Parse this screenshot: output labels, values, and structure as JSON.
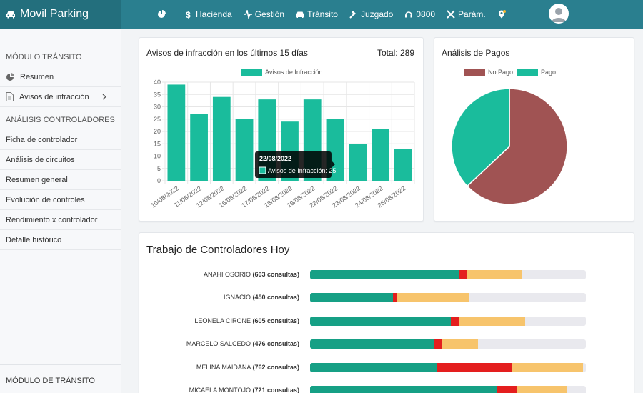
{
  "header": {
    "brand": "Movil Parking",
    "nav": [
      {
        "label": "",
        "icon": "pie-chart-icon"
      },
      {
        "label": "Hacienda",
        "icon": "dollar-icon"
      },
      {
        "label": "Gestión",
        "icon": "activity-icon"
      },
      {
        "label": "Tránsito",
        "icon": "car-icon"
      },
      {
        "label": "Juzgado",
        "icon": "gavel-icon"
      },
      {
        "label": "0800",
        "icon": "headset-icon"
      },
      {
        "label": "Parám.",
        "icon": "tools-icon"
      },
      {
        "label": "",
        "icon": "location-pin-icon"
      }
    ]
  },
  "sidebar": {
    "section1": "MÓDULO TRÁNSITO",
    "items1": [
      {
        "label": "Resumen",
        "icon": "pie-chart-icon"
      },
      {
        "label": "Avisos de infracción",
        "icon": "document-icon"
      }
    ],
    "section2": "ANÁLISIS CONTROLADORES",
    "items2": [
      {
        "label": "Ficha de controlador"
      },
      {
        "label": "Análisis de circuitos"
      },
      {
        "label": "Resumen general"
      },
      {
        "label": "Evolución de controles"
      },
      {
        "label": "Rendimiento x controlador"
      },
      {
        "label": "Detalle histórico"
      }
    ],
    "bottom": "MÓDULO DE TRÁNSITO"
  },
  "avisos": {
    "title": "Avisos de infracción en los últimos 15 días",
    "total": "Total: 289"
  },
  "pagos": {
    "title": "Análisis de Pagos"
  },
  "chart_data": [
    {
      "type": "bar",
      "title": "Avisos de infracción en los últimos 15 días",
      "categories": [
        "10/08/2022",
        "11/08/2022",
        "12/08/2022",
        "16/08/2022",
        "17/08/2022",
        "18/08/2022",
        "19/08/2022",
        "22/08/2022",
        "23/08/2022",
        "24/08/2022",
        "25/08/2022"
      ],
      "series": [
        {
          "name": "Avisos de Infracción",
          "values": [
            39,
            27,
            34,
            25,
            33,
            24,
            33,
            25,
            15,
            21,
            13
          ]
        }
      ],
      "ylim": [
        0,
        40
      ],
      "yticks": [
        0,
        5,
        10,
        15,
        20,
        25,
        30,
        35,
        40
      ],
      "color": "#1abc9c",
      "legend": "top",
      "grid": true,
      "tooltip": {
        "title": "22/08/2022",
        "text": "Avisos de Infracción: 25",
        "index": 7
      }
    },
    {
      "type": "pie",
      "title": "Análisis de Pagos",
      "categories": [
        "No Pago",
        "Pago"
      ],
      "values": [
        63,
        37
      ],
      "colors": [
        "#a05353",
        "#1abc9c"
      ],
      "legend": "top"
    }
  ],
  "trabajo": {
    "title": "Trabajo de Controladores Hoy",
    "colors": [
      "#16a085",
      "#e41e1e",
      "#f7c46c"
    ],
    "rows": [
      {
        "name": "ANAHI OSORIO",
        "count": "(603 consultas)",
        "segments": [
          0.54,
          0.03,
          0.2
        ]
      },
      {
        "name": "IGNACIO",
        "count": "(450 consultas)",
        "segments": [
          0.3,
          0.015,
          0.26
        ]
      },
      {
        "name": "LEONELA CIRONE",
        "count": "(605 consultas)",
        "segments": [
          0.51,
          0.03,
          0.24
        ]
      },
      {
        "name": "MARCELO SALCEDO",
        "count": "(476 consultas)",
        "segments": [
          0.45,
          0.03,
          0.13
        ]
      },
      {
        "name": "MELINA MAIDANA",
        "count": "(762 consultas)",
        "segments": [
          0.46,
          0.27,
          0.26
        ]
      },
      {
        "name": "MICAELA MONTOJO",
        "count": "(721 consultas)",
        "segments": [
          0.68,
          0.07,
          0.18
        ]
      }
    ]
  }
}
